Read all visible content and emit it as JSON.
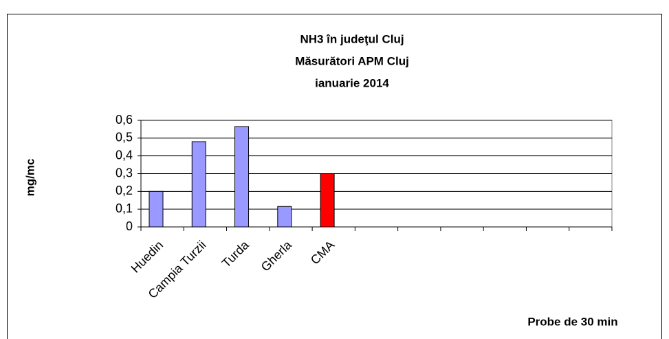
{
  "chart_data": {
    "type": "bar",
    "title": [
      "NH3 în judeţul Cluj",
      "Măsurători APM Cluj",
      "ianuarie 2014"
    ],
    "y_label": "mg/mc",
    "x_label": "Probe de 30 min",
    "categories": [
      "Huedin",
      "Campia Turzii",
      "Turda",
      "Gherla",
      "CMA",
      null,
      null,
      null,
      null,
      null,
      null
    ],
    "values": [
      0.2,
      0.48,
      0.565,
      0.115,
      0.3,
      null,
      null,
      null,
      null,
      null,
      null
    ],
    "colors": [
      "#9999ff",
      "#9999ff",
      "#9999ff",
      "#9999ff",
      "#ff0000",
      null,
      null,
      null,
      null,
      null,
      null
    ],
    "ylim": [
      0,
      0.6
    ],
    "yticks": [
      0,
      {
        "value": 0.1,
        "label": "0,1"
      },
      {
        "value": 0.2,
        "label": "0,2"
      },
      {
        "value": 0.3,
        "label": "0,3"
      },
      {
        "value": 0.4,
        "label": "0,4"
      },
      {
        "value": 0.5,
        "label": "0,5"
      },
      {
        "value": 0.6,
        "label": "0,6"
      }
    ],
    "grid": true
  }
}
